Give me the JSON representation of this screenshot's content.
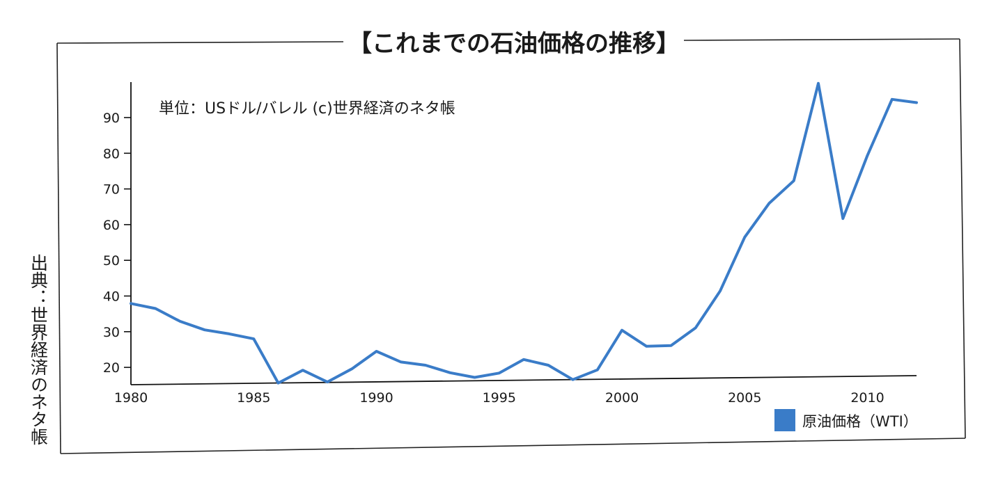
{
  "source_label": "出典：世界経済のネタ帳",
  "chart_data": {
    "type": "line",
    "title": "【これまでの石油価格の推移】",
    "unit_note": "単位：USドル/バレル (c)世界経済のネタ帳",
    "xlabel": "",
    "ylabel": "",
    "x_ticks": [
      1980,
      1985,
      1990,
      1995,
      2000,
      2005,
      2010
    ],
    "y_ticks": [
      20,
      30,
      40,
      50,
      60,
      70,
      80,
      90
    ],
    "xlim": [
      1980,
      2012
    ],
    "ylim": [
      15,
      100
    ],
    "grid": false,
    "legend_position": "bottom-right",
    "series": [
      {
        "name": "原油価格（WTI）",
        "color": "#3a7cc8",
        "x": [
          1980,
          1981,
          1982,
          1983,
          1984,
          1985,
          1986,
          1987,
          1988,
          1989,
          1990,
          1991,
          1992,
          1993,
          1994,
          1995,
          1996,
          1997,
          1998,
          1999,
          2000,
          2001,
          2002,
          2003,
          2004,
          2005,
          2006,
          2007,
          2008,
          2009,
          2010,
          2011,
          2012
        ],
        "y": [
          37.9,
          36.5,
          32.9,
          30.5,
          29.4,
          28.0,
          15.0,
          19.2,
          15.9,
          19.6,
          24.5,
          21.5,
          20.6,
          18.5,
          17.2,
          18.4,
          22.2,
          20.6,
          14.4,
          19.3,
          30.4,
          25.9,
          26.1,
          31.1,
          41.4,
          56.5,
          66.0,
          72.3,
          99.6,
          61.7,
          79.4,
          95.1,
          94.2
        ]
      }
    ]
  }
}
